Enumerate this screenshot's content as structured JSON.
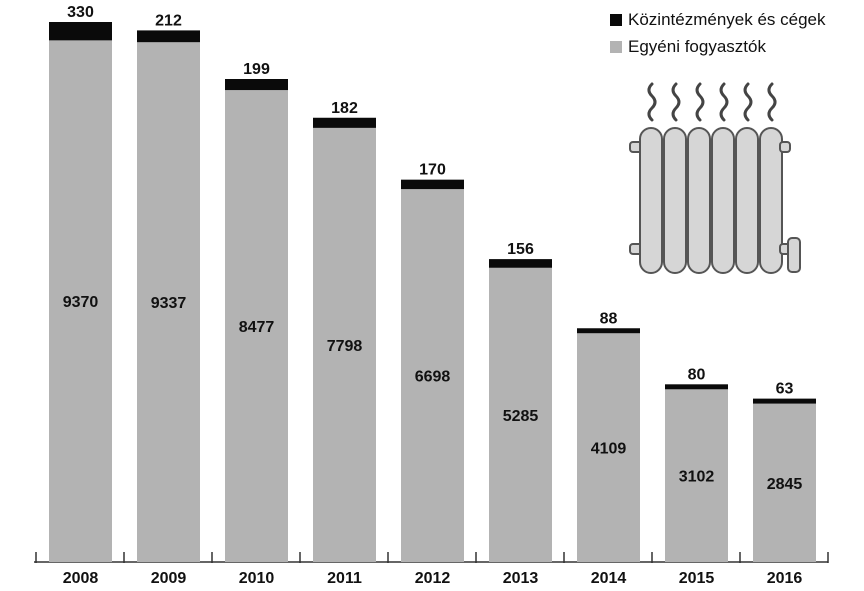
{
  "chart_data": {
    "type": "bar",
    "stacked": true,
    "categories": [
      "2008",
      "2009",
      "2010",
      "2011",
      "2012",
      "2013",
      "2014",
      "2015",
      "2016"
    ],
    "series": [
      {
        "name": "Egyéni fogyasztók",
        "color": "#b3b3b3",
        "values": [
          9370,
          9337,
          8477,
          7798,
          6698,
          5285,
          4109,
          3102,
          2845
        ]
      },
      {
        "name": "Közintézmények és cégek",
        "color": "#0a0a0a",
        "values": [
          330,
          212,
          199,
          182,
          170,
          156,
          88,
          80,
          63
        ]
      }
    ],
    "title": "",
    "xlabel": "",
    "ylabel": "",
    "ylim": [
      0,
      9700
    ],
    "grid": false,
    "legend": "top-right"
  }
}
